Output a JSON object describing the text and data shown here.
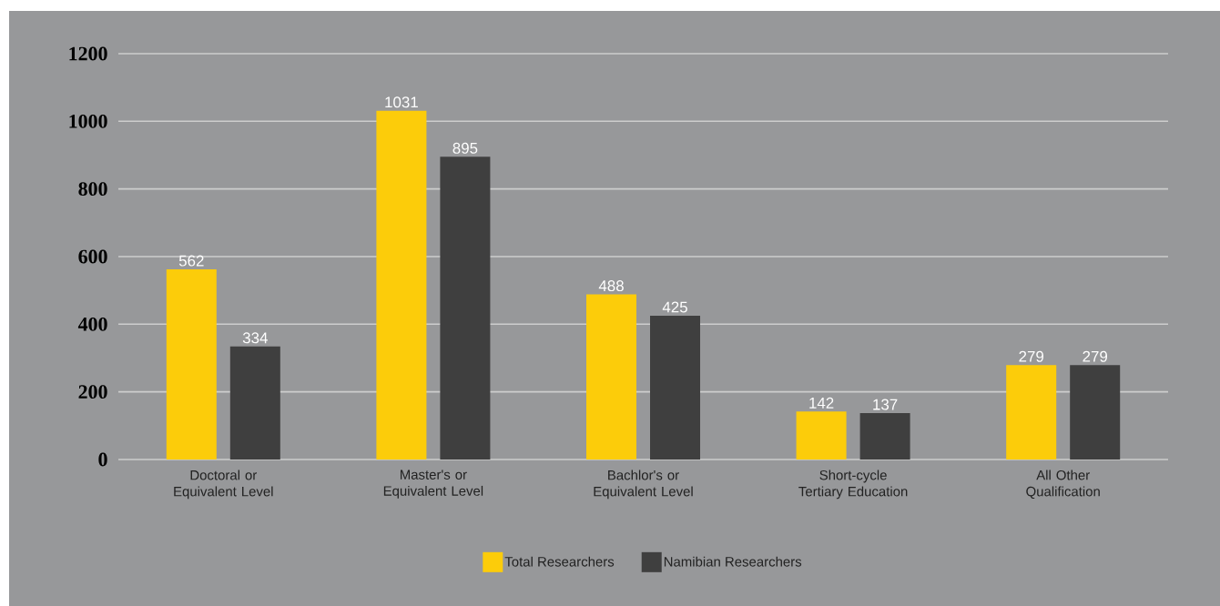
{
  "chart_data": {
    "type": "bar",
    "categories": [
      "Doctoral or Equivalent Level",
      "Master's or Equivalent Level",
      "Bachlor's or Equivalent Level",
      "Short-cycle Tertiary Education",
      "All Other Qualification"
    ],
    "series": [
      {
        "name": "Total Researchers",
        "color": "#fccc0a",
        "values": [
          562,
          1031,
          488,
          142,
          279
        ]
      },
      {
        "name": "Namibian Researchers",
        "color": "#3f3f3f",
        "values": [
          334,
          895,
          425,
          137,
          279
        ]
      }
    ],
    "ylim": [
      0,
      1200
    ],
    "yticks": [
      0,
      200,
      400,
      600,
      800,
      1000,
      1200
    ],
    "grid": "y",
    "legend": "bottom",
    "data_labels": true
  }
}
